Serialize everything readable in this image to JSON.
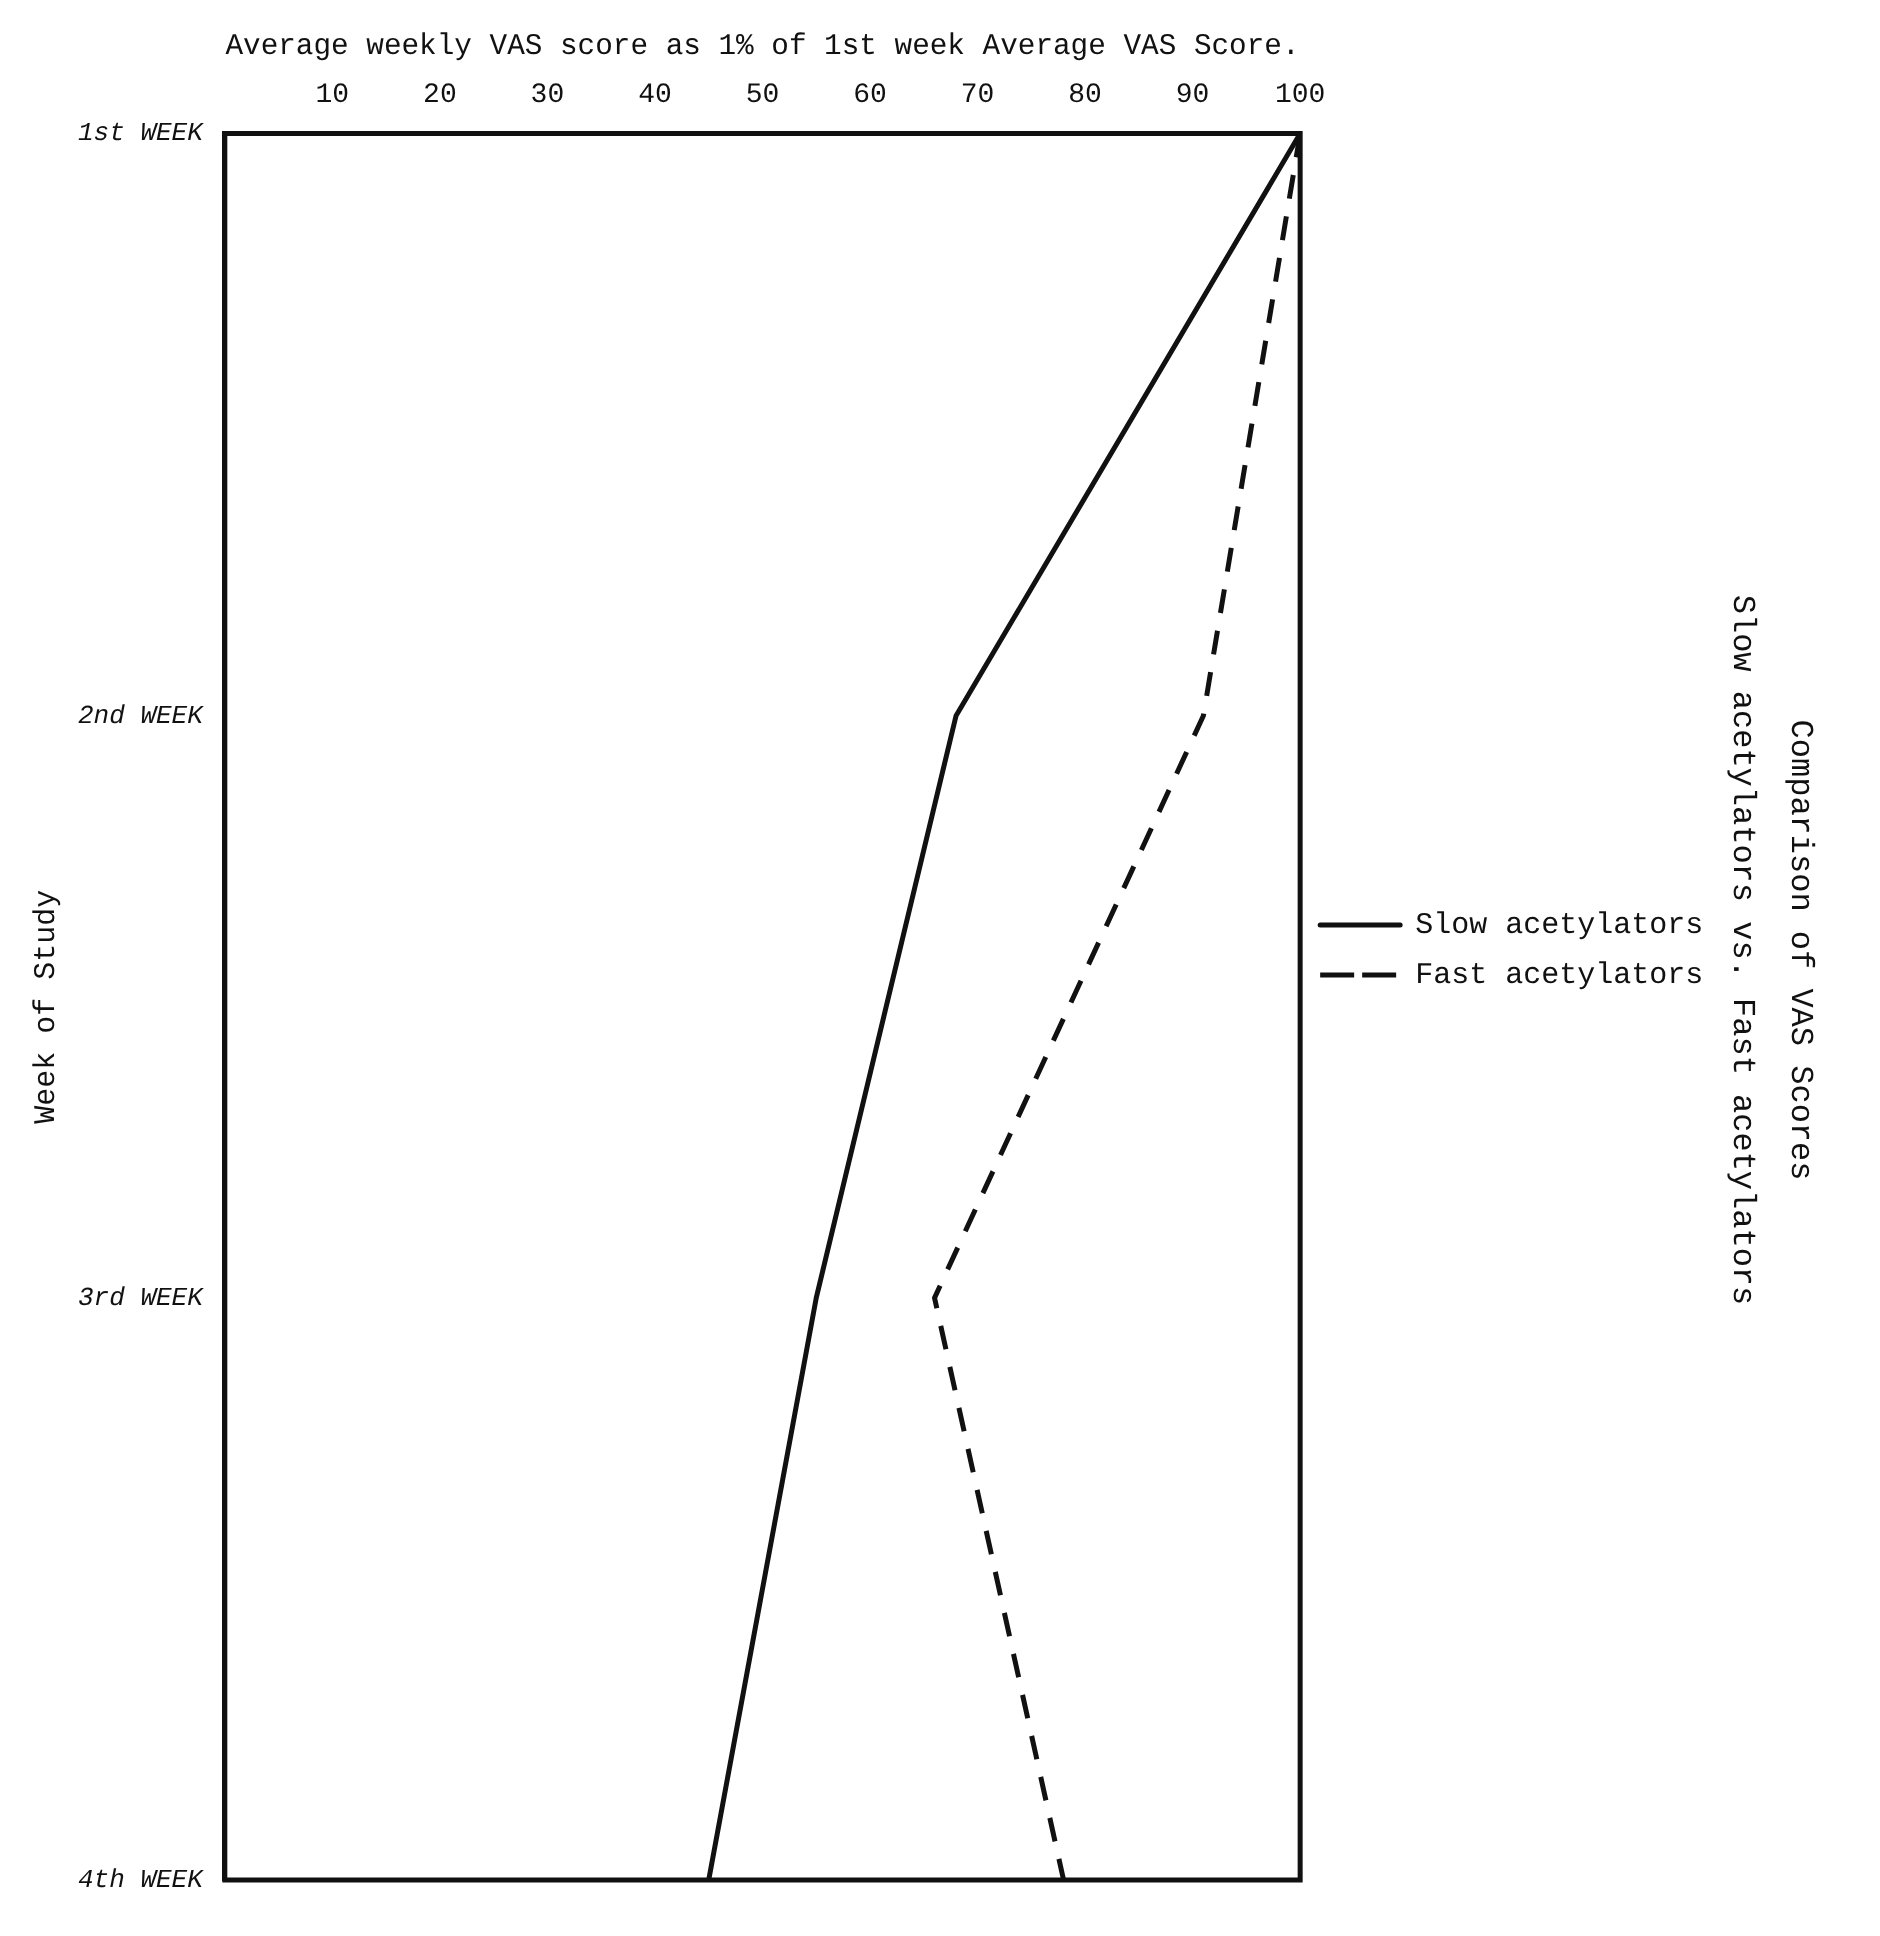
{
  "chart_data": {
    "type": "line",
    "orientation": "horizontal",
    "title": "Comparison of VAS Scores",
    "subtitle": "Slow acetylators vs. Fast acetylators",
    "xlabel": "Average weekly VAS score as 1% of 1st week Average VAS Score.",
    "ylabel": "Week of Study",
    "categories": [
      "1st WEEK",
      "2nd WEEK",
      "3rd WEEK",
      "4th WEEK"
    ],
    "series": [
      {
        "name": "Slow acetylators",
        "color": "#111111",
        "line_style": "solid",
        "values": [
          100,
          68,
          55,
          45
        ]
      },
      {
        "name": "Fast acetylators",
        "color": "#111111",
        "line_style": "dashed",
        "values": [
          100,
          91,
          66,
          78
        ]
      }
    ],
    "xlim": [
      0,
      100
    ],
    "xticks": [
      10,
      20,
      30,
      40,
      50,
      60,
      70,
      80,
      90,
      100
    ],
    "legend": "right",
    "marker": "none"
  }
}
